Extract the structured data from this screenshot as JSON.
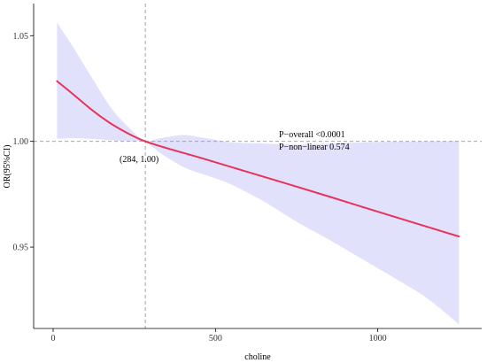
{
  "chart_data": {
    "type": "line",
    "title": "",
    "xlabel": "choline",
    "ylabel": "OR(95%CI)",
    "xlim": [
      -60,
      1320
    ],
    "ylim": [
      0.9115,
      1.0652
    ],
    "x_ticks": [
      0,
      500,
      1000
    ],
    "x_tick_labels": [
      "0",
      "500",
      "1000"
    ],
    "y_ticks": [
      0.95,
      1.0,
      1.05
    ],
    "y_tick_labels": [
      "0.95",
      "1.00",
      "1.05"
    ],
    "grid": false,
    "reference_lines": {
      "y": 1.0,
      "x": 284
    },
    "reference_point": {
      "x": 284,
      "y": 1.0,
      "label": "(284, 1.00)"
    },
    "annotations": [
      "P−overall <0.0001",
      "P−non−linear  0.574"
    ],
    "colors": {
      "line": "#e8325a",
      "band": "#dcdcfa",
      "reference": "#999999"
    },
    "series": [
      {
        "type": "line",
        "x": [
          12,
          60,
          120,
          180,
          240,
          284,
          350,
          450,
          550,
          650,
          750,
          850,
          950,
          1050,
          1150,
          1250
        ],
        "y": [
          1.0285,
          1.0225,
          1.0148,
          1.0082,
          1.003,
          1.0,
          0.9968,
          0.9924,
          0.9878,
          0.9832,
          0.9786,
          0.9739,
          0.9691,
          0.9644,
          0.9597,
          0.955
        ]
      },
      {
        "type": "band",
        "x": [
          12,
          60,
          120,
          180,
          240,
          284,
          330,
          400,
          450,
          500,
          550,
          650,
          750,
          850,
          950,
          1050,
          1150,
          1250
        ],
        "upper": [
          1.0562,
          1.045,
          1.03,
          1.0155,
          1.0055,
          1.0002,
          1.0015,
          1.003,
          1.002,
          1.0008,
          0.9995,
          0.999,
          0.9985,
          0.999,
          0.9995,
          0.9998,
          0.9999,
          1.0002
        ],
        "lower": [
          1.0012,
          1.0015,
          1.0012,
          1.0005,
          1.0,
          0.9998,
          0.9945,
          0.988,
          0.985,
          0.9825,
          0.9795,
          0.9715,
          0.962,
          0.9535,
          0.9445,
          0.9355,
          0.926,
          0.9135
        ]
      }
    ]
  }
}
